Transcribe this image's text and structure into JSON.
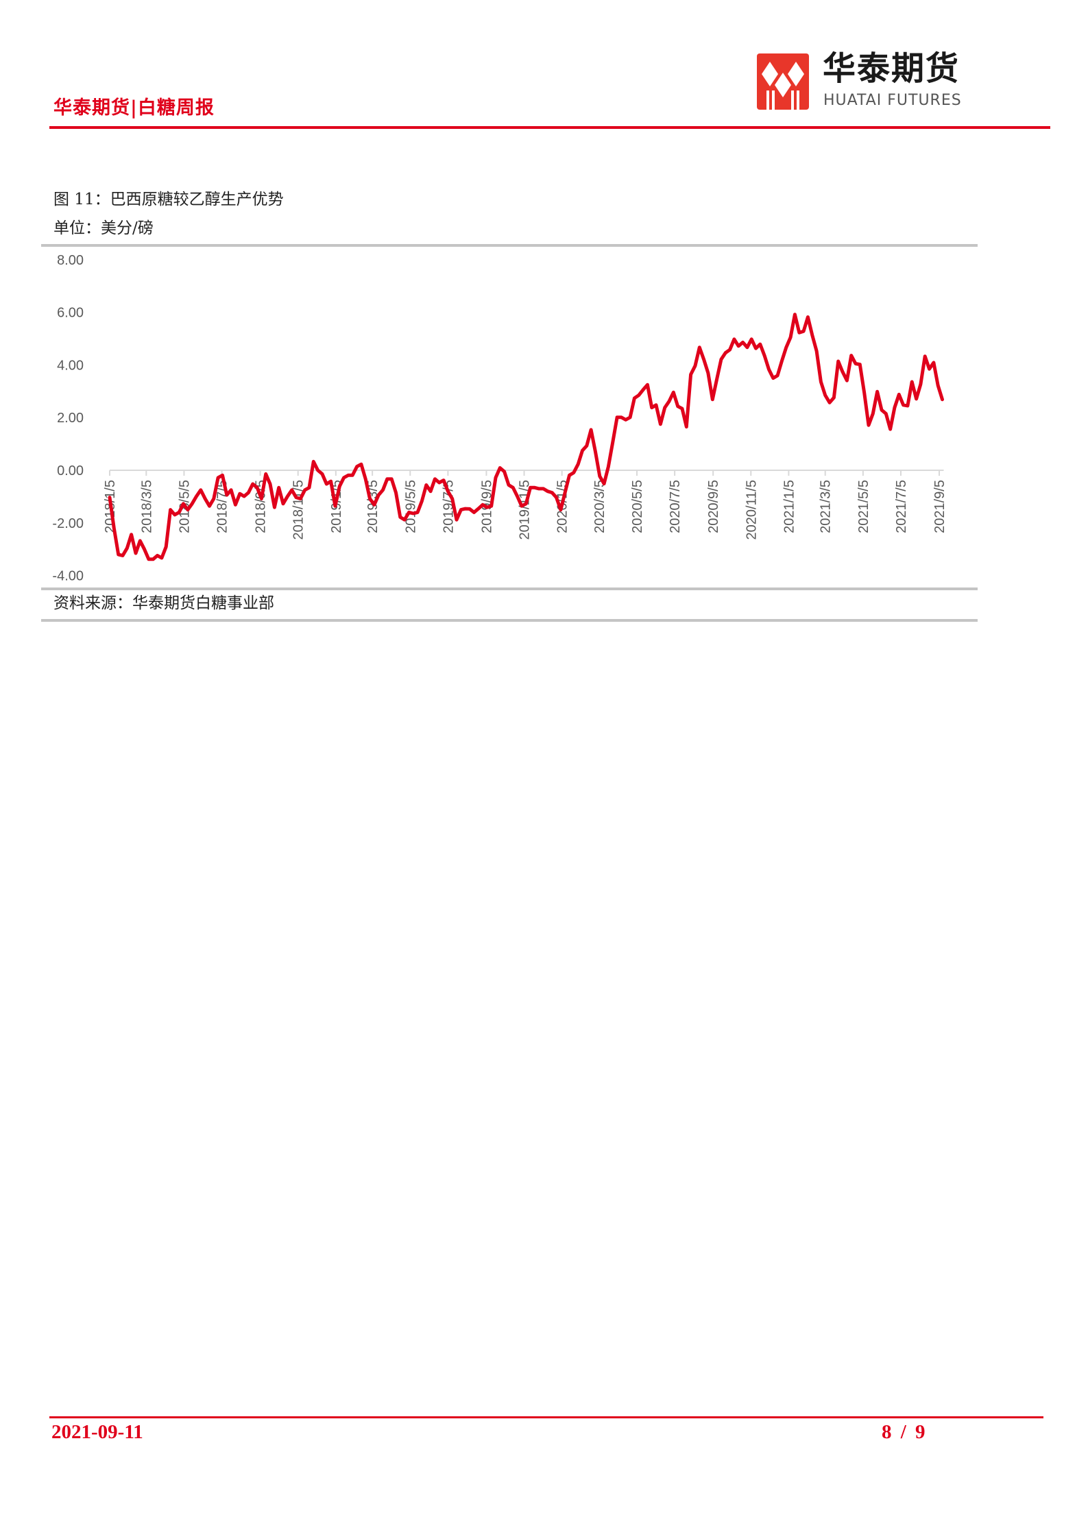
{
  "header": {
    "title": "华泰期货|白糖周报",
    "logo_cn": "华泰期货",
    "logo_en": "HUATAI FUTURES",
    "accent": "#e0001b"
  },
  "figure": {
    "title": "图 11：巴西原糖较乙醇生产优势",
    "unit": "单位：美分/磅",
    "source": "资料来源：华泰期货白糖事业部"
  },
  "chart_data": {
    "type": "line",
    "title": "",
    "xlabel": "",
    "ylabel": "",
    "ylim": [
      -4,
      8
    ],
    "y_ticks": [
      "8.00",
      "6.00",
      "4.00",
      "2.00",
      "0.00",
      "-2.00",
      "-4.00"
    ],
    "x_ticks": [
      "2018/1/5",
      "2018/3/5",
      "2018/5/5",
      "2018/7/5",
      "2018/9/5",
      "2018/11/5",
      "2019/1/5",
      "2019/3/5",
      "2019/5/5",
      "2019/7/5",
      "2019/9/5",
      "2019/11/5",
      "2020/1/5",
      "2020/3/5",
      "2020/5/5",
      "2020/7/5",
      "2020/9/5",
      "2020/11/5",
      "2021/1/5",
      "2021/3/5",
      "2021/5/5",
      "2021/7/5",
      "2021/9/5"
    ],
    "grid": false,
    "legend": "none",
    "line_color": "#e0001b",
    "x": [
      "2018/1/5",
      "2018/1/12",
      "2018/1/19",
      "2018/1/26",
      "2018/2/2",
      "2018/2/9",
      "2018/2/16",
      "2018/2/23",
      "2018/3/2",
      "2018/3/9",
      "2018/3/16",
      "2018/3/23",
      "2018/3/30",
      "2018/4/6",
      "2018/4/13",
      "2018/4/20",
      "2018/4/27",
      "2018/5/4",
      "2018/5/11",
      "2018/5/18",
      "2018/5/25",
      "2018/6/1",
      "2018/6/8",
      "2018/6/15",
      "2018/6/22",
      "2018/6/29",
      "2018/7/6",
      "2018/7/13",
      "2018/7/20",
      "2018/7/27",
      "2018/8/3",
      "2018/8/10",
      "2018/8/17",
      "2018/8/24",
      "2018/8/31",
      "2018/9/7",
      "2018/9/14",
      "2018/9/21",
      "2018/9/28",
      "2018/10/5",
      "2018/10/12",
      "2018/10/19",
      "2018/10/26",
      "2018/11/2",
      "2018/11/9",
      "2018/11/16",
      "2018/11/23",
      "2018/11/30",
      "2018/12/7",
      "2018/12/14",
      "2018/12/21",
      "2018/12/28",
      "2019/1/4",
      "2019/1/11",
      "2019/1/18",
      "2019/1/25",
      "2019/2/1",
      "2019/2/8",
      "2019/2/15",
      "2019/2/22",
      "2019/3/1",
      "2019/3/8",
      "2019/3/15",
      "2019/3/22",
      "2019/3/29",
      "2019/4/5",
      "2019/4/12",
      "2019/4/19",
      "2019/4/26",
      "2019/5/3",
      "2019/5/10",
      "2019/5/17",
      "2019/5/24",
      "2019/5/31",
      "2019/6/7",
      "2019/6/14",
      "2019/6/21",
      "2019/6/28",
      "2019/7/5",
      "2019/7/12",
      "2019/7/19",
      "2019/7/26",
      "2019/8/2",
      "2019/8/9",
      "2019/8/16",
      "2019/8/23",
      "2019/8/30",
      "2019/9/6",
      "2019/9/13",
      "2019/9/20",
      "2019/9/27",
      "2019/10/4",
      "2019/10/11",
      "2019/10/18",
      "2019/10/25",
      "2019/11/1",
      "2019/11/8",
      "2019/11/15",
      "2019/11/22",
      "2019/11/29",
      "2019/12/6",
      "2019/12/13",
      "2019/12/20",
      "2019/12/27",
      "2020/1/3",
      "2020/1/10",
      "2020/1/17",
      "2020/1/24",
      "2020/1/31",
      "2020/2/7",
      "2020/2/14",
      "2020/2/21",
      "2020/2/28",
      "2020/3/6",
      "2020/3/13",
      "2020/3/20",
      "2020/3/27",
      "2020/4/3",
      "2020/4/10",
      "2020/4/17",
      "2020/4/24",
      "2020/5/1",
      "2020/5/8",
      "2020/5/15",
      "2020/5/22",
      "2020/5/29",
      "2020/6/5",
      "2020/6/12",
      "2020/6/19",
      "2020/6/26",
      "2020/7/3",
      "2020/7/10",
      "2020/7/17",
      "2020/7/24",
      "2020/7/31",
      "2020/8/7",
      "2020/8/14",
      "2020/8/21",
      "2020/8/28",
      "2020/9/4",
      "2020/9/11",
      "2020/9/18",
      "2020/9/25",
      "2020/10/2",
      "2020/10/9",
      "2020/10/16",
      "2020/10/23",
      "2020/10/30",
      "2020/11/6",
      "2020/11/13",
      "2020/11/20",
      "2020/11/27",
      "2020/12/4",
      "2020/12/11",
      "2020/12/18",
      "2020/12/25",
      "2021/1/1",
      "2021/1/8",
      "2021/1/15",
      "2021/1/22",
      "2021/1/29",
      "2021/2/5",
      "2021/2/12",
      "2021/2/19",
      "2021/2/26",
      "2021/3/5",
      "2021/3/12",
      "2021/3/19",
      "2021/3/26",
      "2021/4/2",
      "2021/4/9",
      "2021/4/16",
      "2021/4/23",
      "2021/4/30",
      "2021/5/7",
      "2021/5/14",
      "2021/5/21",
      "2021/5/28",
      "2021/6/4",
      "2021/6/11",
      "2021/6/18",
      "2021/6/25",
      "2021/7/2",
      "2021/7/9",
      "2021/7/16",
      "2021/7/23",
      "2021/7/30",
      "2021/8/6",
      "2021/8/13",
      "2021/8/20",
      "2021/8/27",
      "2021/9/3",
      "2021/9/10"
    ],
    "y": [
      -1.03,
      -2.2,
      -3.2,
      -3.24,
      -2.96,
      -2.44,
      -3.15,
      -2.68,
      -3.0,
      -3.38,
      -3.38,
      -3.24,
      -3.33,
      -2.91,
      -1.5,
      -1.69,
      -1.6,
      -1.27,
      -1.5,
      -1.27,
      -0.99,
      -0.75,
      -1.08,
      -1.36,
      -1.08,
      -0.28,
      -0.19,
      -0.94,
      -0.75,
      -1.31,
      -0.89,
      -0.99,
      -0.85,
      -0.52,
      -0.66,
      -1.08,
      -0.14,
      -0.52,
      -1.41,
      -0.66,
      -1.27,
      -0.99,
      -0.75,
      -1.03,
      -1.08,
      -0.75,
      -0.66,
      0.33,
      0.0,
      -0.14,
      -0.52,
      -0.42,
      -1.36,
      -0.61,
      -0.28,
      -0.19,
      -0.19,
      0.14,
      0.23,
      -0.33,
      -1.08,
      -1.31,
      -0.94,
      -0.75,
      -0.33,
      -0.33,
      -0.85,
      -1.78,
      -1.88,
      -1.6,
      -1.64,
      -1.6,
      -1.17,
      -0.56,
      -0.8,
      -0.33,
      -0.47,
      -0.38,
      -0.8,
      -1.08,
      -1.88,
      -1.5,
      -1.46,
      -1.47,
      -1.6,
      -1.46,
      -1.31,
      -1.41,
      -1.36,
      -0.28,
      0.09,
      -0.05,
      -0.56,
      -0.66,
      -0.99,
      -1.36,
      -1.27,
      -0.66,
      -0.66,
      -0.7,
      -0.7,
      -0.8,
      -0.85,
      -1.03,
      -1.5,
      -0.84,
      -0.19,
      -0.09,
      0.23,
      0.75,
      0.93,
      1.54,
      0.7,
      -0.23,
      -0.51,
      0.14,
      1.07,
      2.01,
      2.01,
      1.92,
      2.01,
      2.74,
      2.85,
      3.06,
      3.25,
      2.38,
      2.48,
      1.75,
      2.38,
      2.62,
      2.96,
      2.43,
      2.34,
      1.65,
      3.64,
      3.97,
      4.67,
      4.21,
      3.69,
      2.69,
      3.46,
      4.21,
      4.46,
      4.58,
      4.98,
      4.72,
      4.86,
      4.67,
      4.98,
      4.63,
      4.79,
      4.35,
      3.83,
      3.5,
      3.6,
      4.16,
      4.67,
      5.05,
      5.92,
      5.23,
      5.28,
      5.82,
      5.14,
      4.53,
      3.36,
      2.85,
      2.57,
      2.76,
      4.14,
      3.74,
      3.41,
      4.36,
      4.05,
      4.02,
      2.94,
      1.71,
      2.15,
      2.99,
      2.29,
      2.15,
      1.56,
      2.38,
      2.88,
      2.48,
      2.45,
      3.36,
      2.71,
      3.27,
      4.33,
      3.85,
      4.09,
      3.22,
      2.69
    ]
  },
  "footer": {
    "date": "2021-09-11",
    "page": "8 / 9"
  }
}
